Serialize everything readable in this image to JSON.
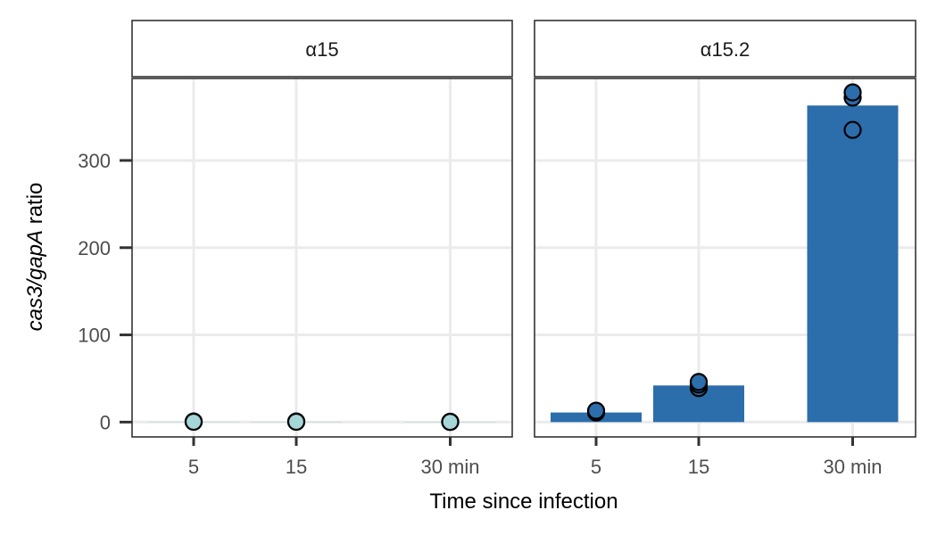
{
  "chart_data": {
    "type": "bar",
    "x_axis_title": "Time since infection",
    "y_axis_title_parts": [
      {
        "text": "cas3/gapA",
        "italic": true
      },
      {
        "text": " ratio",
        "italic": false
      }
    ],
    "categories": [
      "5",
      "15",
      "30 min"
    ],
    "category_positions": [
      0,
      1,
      2.5
    ],
    "ylim": [
      -17,
      394
    ],
    "yticks": [
      0,
      100,
      200,
      300
    ],
    "grid": true,
    "panels": [
      {
        "strip_label": "α15",
        "bar_color": "#a6d7d8",
        "point_fill": "#a6d7d8",
        "bars": [
          0.5,
          0.4,
          0.3
        ],
        "points": [
          [
            0.5,
            0.6,
            0.4
          ],
          [
            0.5,
            0.6,
            0.4
          ],
          [
            0.3,
            0.4,
            0.2
          ]
        ]
      },
      {
        "strip_label": "α15.2",
        "bar_color": "#2c6dab",
        "point_fill": "#2c6dab",
        "bars": [
          11,
          42,
          363
        ],
        "points": [
          [
            12,
            11,
            13
          ],
          [
            39,
            43,
            46
          ],
          [
            335,
            372,
            378
          ]
        ]
      }
    ]
  }
}
